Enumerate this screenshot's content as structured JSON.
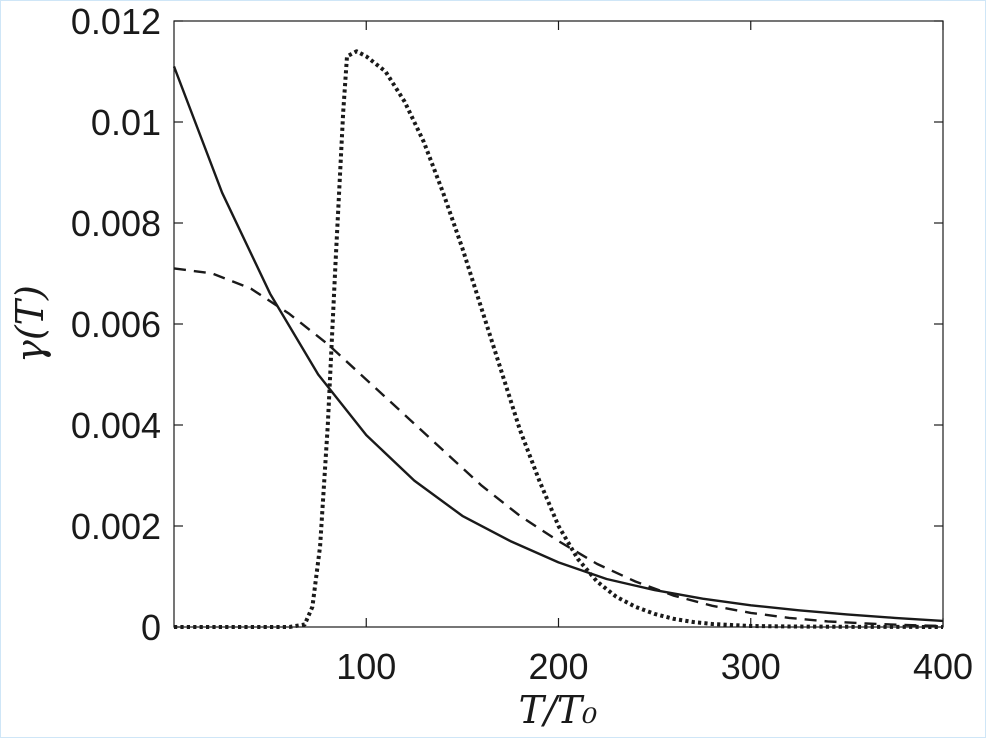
{
  "chart_data": {
    "type": "line",
    "xlabel": "T/T₀",
    "ylabel": "γ(T)",
    "xlim": [
      0,
      400
    ],
    "ylim": [
      0,
      0.012
    ],
    "xticks": [
      100,
      200,
      300,
      400
    ],
    "xtick_labels": [
      "100",
      "200",
      "300",
      "400"
    ],
    "yticks": [
      0,
      0.002,
      0.004,
      0.006,
      0.008,
      0.01,
      0.012
    ],
    "ytick_labels": [
      "0",
      "0.002",
      "0.004",
      "0.006",
      "0.008",
      "0.01",
      "0.012"
    ],
    "grid": false,
    "legend": "none",
    "series": [
      {
        "style": "solid",
        "color": "#1a1a1a",
        "x": [
          0,
          25,
          50,
          75,
          100,
          125,
          150,
          175,
          200,
          225,
          250,
          275,
          300,
          325,
          350,
          375,
          400
        ],
        "y": [
          0.0111,
          0.0086,
          0.0066,
          0.005,
          0.0038,
          0.0029,
          0.0022,
          0.0017,
          0.00128,
          0.00095,
          0.00073,
          0.00056,
          0.00043,
          0.00033,
          0.00025,
          0.00018,
          0.00012
        ]
      },
      {
        "style": "dashed",
        "color": "#1a1a1a",
        "x": [
          0,
          20,
          40,
          60,
          80,
          100,
          120,
          140,
          160,
          180,
          200,
          220,
          240,
          260,
          280,
          300,
          320,
          340,
          360,
          380,
          400
        ],
        "y": [
          0.0071,
          0.007,
          0.0067,
          0.0062,
          0.0056,
          0.0049,
          0.0042,
          0.0035,
          0.0028,
          0.0022,
          0.0017,
          0.00125,
          0.0009,
          0.00062,
          0.00042,
          0.00028,
          0.00018,
          0.00011,
          7e-05,
          4e-05,
          2e-05
        ]
      },
      {
        "style": "dotted",
        "color": "#1a1a1a",
        "x": [
          0,
          60,
          68,
          72,
          76,
          80,
          84,
          88,
          90,
          95,
          100,
          110,
          120,
          130,
          140,
          150,
          160,
          170,
          180,
          190,
          200,
          210,
          220,
          230,
          240,
          250,
          260,
          270,
          280,
          300,
          320,
          340,
          360,
          380,
          400
        ],
        "y": [
          0,
          0,
          5e-05,
          0.0004,
          0.0016,
          0.004,
          0.0072,
          0.0102,
          0.0113,
          0.0114,
          0.0113,
          0.011,
          0.0104,
          0.0096,
          0.0086,
          0.0075,
          0.0063,
          0.0051,
          0.0039,
          0.0029,
          0.002,
          0.00135,
          0.0009,
          0.0006,
          0.0004,
          0.00026,
          0.00016,
          0.0001,
          6e-05,
          2e-05,
          1e-05,
          5e-06,
          2e-06,
          1e-06,
          0
        ]
      }
    ]
  }
}
